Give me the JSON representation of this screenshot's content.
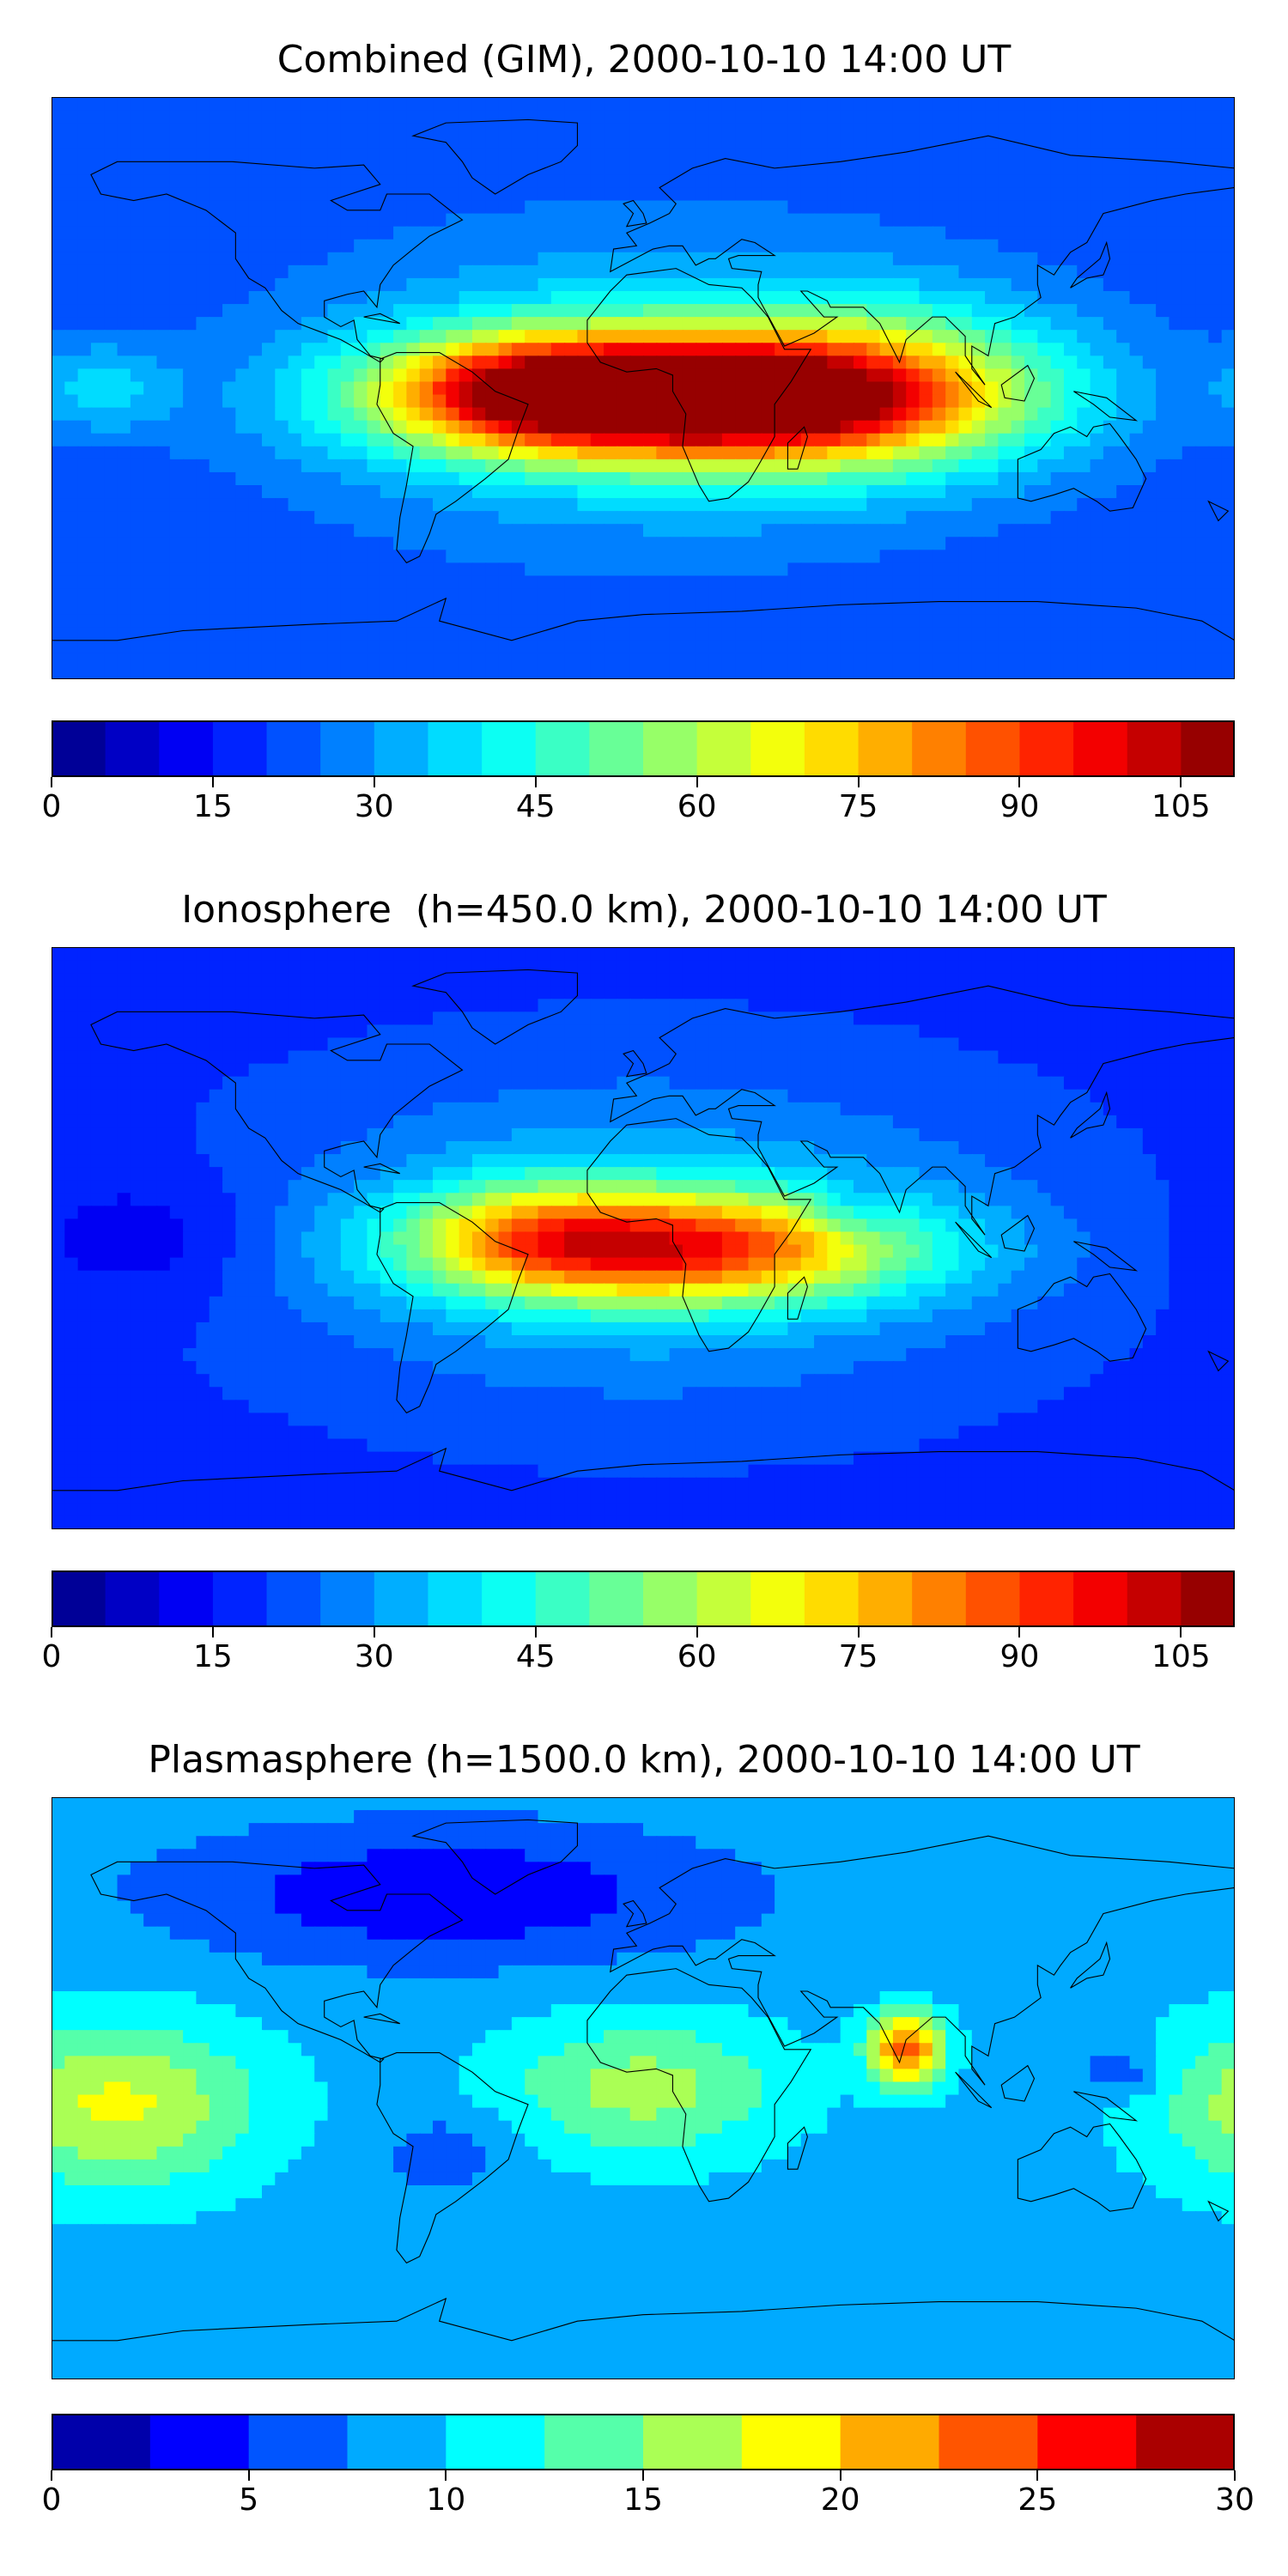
{
  "chart_data": [
    {
      "type": "heatmap",
      "title": "Combined (GIM), 2000-10-10 14:00 UT",
      "colorbar": {
        "levels": [
          0,
          5,
          10,
          15,
          20,
          25,
          30,
          35,
          40,
          45,
          50,
          55,
          60,
          65,
          70,
          75,
          80,
          85,
          90,
          95,
          100,
          105,
          110
        ],
        "ticks": [
          0,
          15,
          30,
          45,
          60,
          75,
          90,
          105
        ],
        "tick_labels": [
          "0",
          "15",
          "30",
          "45",
          "60",
          "75",
          "90",
          "105"
        ],
        "range": [
          0,
          110
        ]
      },
      "grid": false,
      "background_value": 20,
      "blobs": [
        {
          "lon": 10,
          "lat": -3,
          "amp": 85,
          "sx": 55,
          "sy": 13
        },
        {
          "lon": -35,
          "lat": 0,
          "amp": 30,
          "sx": 30,
          "sy": 12
        },
        {
          "lon": 60,
          "lat": 0,
          "amp": 25,
          "sx": 35,
          "sy": 18
        },
        {
          "lon": 0,
          "lat": 0,
          "amp": 20,
          "sx": 80,
          "sy": 35
        },
        {
          "lon": -165,
          "lat": 0,
          "amp": 15,
          "sx": 15,
          "sy": 10
        },
        {
          "lon": 100,
          "lat": 0,
          "amp": 10,
          "sx": 40,
          "sy": 20
        }
      ]
    },
    {
      "type": "heatmap",
      "title": "Ionosphere  (h=450.0 km), 2000-10-10 14:00 UT",
      "colorbar": {
        "levels": [
          0,
          5,
          10,
          15,
          20,
          25,
          30,
          35,
          40,
          45,
          50,
          55,
          60,
          65,
          70,
          75,
          80,
          85,
          90,
          95,
          100,
          105,
          110
        ],
        "ticks": [
          0,
          15,
          30,
          45,
          60,
          75,
          90,
          105
        ],
        "tick_labels": [
          "0",
          "15",
          "30",
          "45",
          "60",
          "75",
          "90",
          "105"
        ],
        "range": [
          0,
          110
        ]
      },
      "grid": false,
      "background_value": 18,
      "blobs": [
        {
          "lon": 10,
          "lat": -3,
          "amp": 62,
          "sx": 50,
          "sy": 12
        },
        {
          "lon": -35,
          "lat": 2,
          "amp": 20,
          "sx": 25,
          "sy": 12
        },
        {
          "lon": 0,
          "lat": 0,
          "amp": 18,
          "sx": 80,
          "sy": 35
        },
        {
          "lon": 65,
          "lat": 8,
          "amp": -10,
          "sx": 10,
          "sy": 6
        },
        {
          "lon": -150,
          "lat": 0,
          "amp": -8,
          "sx": 25,
          "sy": 15
        }
      ]
    },
    {
      "type": "heatmap",
      "title": "Plasmasphere (h=1500.0 km), 2000-10-10 14:00 UT",
      "colorbar": {
        "levels": [
          0,
          2.5,
          5,
          7.5,
          10,
          12.5,
          15,
          17.5,
          20,
          22.5,
          25,
          27.5,
          30
        ],
        "ticks": [
          0,
          5,
          10,
          15,
          20,
          25,
          30
        ],
        "tick_labels": [
          "0",
          "5",
          "10",
          "15",
          "20",
          "25",
          "30"
        ],
        "range": [
          0,
          30
        ]
      },
      "grid": false,
      "background_value": 9,
      "blobs": [
        {
          "lon": 80,
          "lat": 12,
          "amp": 15,
          "sx": 8,
          "sy": 8
        },
        {
          "lon": -160,
          "lat": -5,
          "amp": 9,
          "sx": 30,
          "sy": 18
        },
        {
          "lon": 0,
          "lat": 0,
          "amp": 7,
          "sx": 30,
          "sy": 15
        },
        {
          "lon": 145,
          "lat": 5,
          "amp": -4,
          "sx": 10,
          "sy": 6
        },
        {
          "lon": -60,
          "lat": -20,
          "amp": -3,
          "sx": 15,
          "sy": 10
        },
        {
          "lon": -60,
          "lat": 60,
          "amp": -6,
          "sx": 60,
          "sy": 15
        }
      ]
    }
  ],
  "coastlines": {
    "north_america": [
      [
        -168,
        66
      ],
      [
        -160,
        70
      ],
      [
        -140,
        70
      ],
      [
        -125,
        70
      ],
      [
        -100,
        68
      ],
      [
        -85,
        69
      ],
      [
        -80,
        63
      ],
      [
        -95,
        58
      ],
      [
        -90,
        55
      ],
      [
        -80,
        55
      ],
      [
        -78,
        60
      ],
      [
        -65,
        60
      ],
      [
        -55,
        52
      ],
      [
        -65,
        47
      ],
      [
        -70,
        43
      ],
      [
        -76,
        38
      ],
      [
        -80,
        32
      ],
      [
        -81,
        25
      ],
      [
        -85,
        30
      ],
      [
        -90,
        29
      ],
      [
        -97,
        27
      ],
      [
        -97,
        22
      ],
      [
        -92,
        19
      ],
      [
        -88,
        21
      ],
      [
        -87,
        15
      ],
      [
        -83,
        10
      ],
      [
        -79,
        9
      ],
      [
        -80,
        8
      ],
      [
        -85,
        11
      ],
      [
        -92,
        15
      ],
      [
        -105,
        20
      ],
      [
        -110,
        24
      ],
      [
        -115,
        31
      ],
      [
        -120,
        34
      ],
      [
        -124,
        40
      ],
      [
        -124,
        48
      ],
      [
        -133,
        55
      ],
      [
        -145,
        60
      ],
      [
        -155,
        58
      ],
      [
        -165,
        60
      ],
      [
        -168,
        66
      ]
    ],
    "south_america": [
      [
        -80,
        9
      ],
      [
        -75,
        11
      ],
      [
        -62,
        11
      ],
      [
        -52,
        5
      ],
      [
        -45,
        -1
      ],
      [
        -35,
        -5
      ],
      [
        -38,
        -13
      ],
      [
        -41,
        -22
      ],
      [
        -48,
        -28
      ],
      [
        -57,
        -35
      ],
      [
        -63,
        -39
      ],
      [
        -65,
        -45
      ],
      [
        -68,
        -52
      ],
      [
        -72,
        -54
      ],
      [
        -75,
        -50
      ],
      [
        -74,
        -40
      ],
      [
        -72,
        -30
      ],
      [
        -70,
        -18
      ],
      [
        -76,
        -14
      ],
      [
        -81,
        -5
      ],
      [
        -80,
        1
      ],
      [
        -80,
        9
      ]
    ],
    "africa": [
      [
        -17,
        21
      ],
      [
        -10,
        30
      ],
      [
        -5,
        35
      ],
      [
        10,
        37
      ],
      [
        20,
        32
      ],
      [
        30,
        31
      ],
      [
        33,
        28
      ],
      [
        38,
        22
      ],
      [
        43,
        12
      ],
      [
        51,
        12
      ],
      [
        45,
        2
      ],
      [
        40,
        -5
      ],
      [
        40,
        -15
      ],
      [
        35,
        -24
      ],
      [
        32,
        -29
      ],
      [
        26,
        -34
      ],
      [
        20,
        -35
      ],
      [
        17,
        -30
      ],
      [
        12,
        -18
      ],
      [
        13,
        -8
      ],
      [
        9,
        -1
      ],
      [
        9,
        4
      ],
      [
        4,
        6
      ],
      [
        -5,
        5
      ],
      [
        -13,
        8
      ],
      [
        -17,
        14
      ],
      [
        -17,
        21
      ]
    ],
    "eurasia": [
      [
        -10,
        36
      ],
      [
        -9,
        43
      ],
      [
        -2,
        44
      ],
      [
        -5,
        48
      ],
      [
        2,
        51
      ],
      [
        8,
        54
      ],
      [
        10,
        57
      ],
      [
        5,
        62
      ],
      [
        15,
        68
      ],
      [
        25,
        71
      ],
      [
        40,
        68
      ],
      [
        60,
        70
      ],
      [
        80,
        73
      ],
      [
        105,
        78
      ],
      [
        130,
        72
      ],
      [
        160,
        70
      ],
      [
        180,
        68
      ],
      [
        180,
        62
      ],
      [
        165,
        60
      ],
      [
        155,
        58
      ],
      [
        140,
        54
      ],
      [
        135,
        45
      ],
      [
        130,
        42
      ],
      [
        127,
        38
      ],
      [
        125,
        35
      ],
      [
        120,
        38
      ],
      [
        120,
        32
      ],
      [
        121,
        28
      ],
      [
        113,
        22
      ],
      [
        107,
        20
      ],
      [
        105,
        10
      ],
      [
        100,
        13
      ],
      [
        100,
        6
      ],
      [
        104,
        1
      ],
      [
        98,
        10
      ],
      [
        98,
        16
      ],
      [
        92,
        22
      ],
      [
        88,
        22
      ],
      [
        80,
        15
      ],
      [
        78,
        8
      ],
      [
        72,
        20
      ],
      [
        67,
        25
      ],
      [
        57,
        25
      ],
      [
        56,
        27
      ],
      [
        50,
        30
      ],
      [
        48,
        30
      ],
      [
        55,
        22
      ],
      [
        59,
        22
      ],
      [
        52,
        17
      ],
      [
        43,
        13
      ],
      [
        35,
        28
      ],
      [
        35,
        32
      ],
      [
        36,
        36
      ],
      [
        27,
        37
      ],
      [
        26,
        40
      ],
      [
        29,
        41
      ],
      [
        40,
        41
      ],
      [
        34,
        45
      ],
      [
        30,
        46
      ],
      [
        22,
        40
      ],
      [
        20,
        40
      ],
      [
        16,
        38
      ],
      [
        12,
        44
      ],
      [
        8,
        44
      ],
      [
        3,
        43
      ],
      [
        -10,
        36
      ]
    ],
    "australia": [
      [
        114,
        -22
      ],
      [
        114,
        -34
      ],
      [
        118,
        -35
      ],
      [
        125,
        -33
      ],
      [
        131,
        -31
      ],
      [
        138,
        -35
      ],
      [
        142,
        -38
      ],
      [
        149,
        -37
      ],
      [
        153,
        -28
      ],
      [
        150,
        -22
      ],
      [
        145,
        -15
      ],
      [
        142,
        -11
      ],
      [
        137,
        -12
      ],
      [
        135,
        -15
      ],
      [
        130,
        -12
      ],
      [
        125,
        -14
      ],
      [
        121,
        -19
      ],
      [
        114,
        -22
      ]
    ],
    "antarctica": [
      [
        -180,
        -78
      ],
      [
        -160,
        -78
      ],
      [
        -140,
        -75
      ],
      [
        -100,
        -73
      ],
      [
        -75,
        -72
      ],
      [
        -60,
        -65
      ],
      [
        -62,
        -72
      ],
      [
        -40,
        -78
      ],
      [
        -20,
        -72
      ],
      [
        0,
        -70
      ],
      [
        30,
        -69
      ],
      [
        60,
        -67
      ],
      [
        90,
        -66
      ],
      [
        120,
        -66
      ],
      [
        150,
        -68
      ],
      [
        170,
        -72
      ],
      [
        180,
        -78
      ]
    ],
    "greenland": [
      [
        -45,
        60
      ],
      [
        -52,
        65
      ],
      [
        -55,
        70
      ],
      [
        -60,
        76
      ],
      [
        -70,
        78
      ],
      [
        -60,
        82
      ],
      [
        -35,
        83
      ],
      [
        -20,
        82
      ],
      [
        -20,
        75
      ],
      [
        -25,
        70
      ],
      [
        -35,
        66
      ],
      [
        -45,
        60
      ]
    ],
    "uk": [
      [
        -5,
        50
      ],
      [
        1,
        51
      ],
      [
        0,
        54
      ],
      [
        -3,
        58
      ],
      [
        -6,
        57
      ],
      [
        -3,
        54
      ],
      [
        -5,
        50
      ]
    ],
    "madagascar": [
      [
        44,
        -25
      ],
      [
        47,
        -25
      ],
      [
        50,
        -15
      ],
      [
        49,
        -12
      ],
      [
        44,
        -17
      ],
      [
        44,
        -25
      ]
    ],
    "japan": [
      [
        130,
        31
      ],
      [
        135,
        34
      ],
      [
        140,
        35
      ],
      [
        142,
        40
      ],
      [
        141,
        45
      ],
      [
        139,
        40
      ],
      [
        132,
        34
      ],
      [
        130,
        31
      ]
    ],
    "borneo": [
      [
        109,
        1
      ],
      [
        117,
        7
      ],
      [
        119,
        3
      ],
      [
        116,
        -4
      ],
      [
        110,
        -3
      ],
      [
        109,
        1
      ]
    ],
    "sumatra": [
      [
        95,
        5
      ],
      [
        106,
        -6
      ],
      [
        102,
        -4
      ],
      [
        95,
        5
      ]
    ],
    "new_guinea": [
      [
        131,
        -1
      ],
      [
        141,
        -3
      ],
      [
        150,
        -10
      ],
      [
        142,
        -9
      ],
      [
        137,
        -5
      ],
      [
        131,
        -1
      ]
    ],
    "new_zealand": [
      [
        172,
        -35
      ],
      [
        178,
        -38
      ],
      [
        175,
        -41
      ],
      [
        172,
        -35
      ]
    ],
    "cuba": [
      [
        -85,
        22
      ],
      [
        -74,
        20
      ],
      [
        -80,
        23
      ],
      [
        -85,
        22
      ]
    ]
  }
}
